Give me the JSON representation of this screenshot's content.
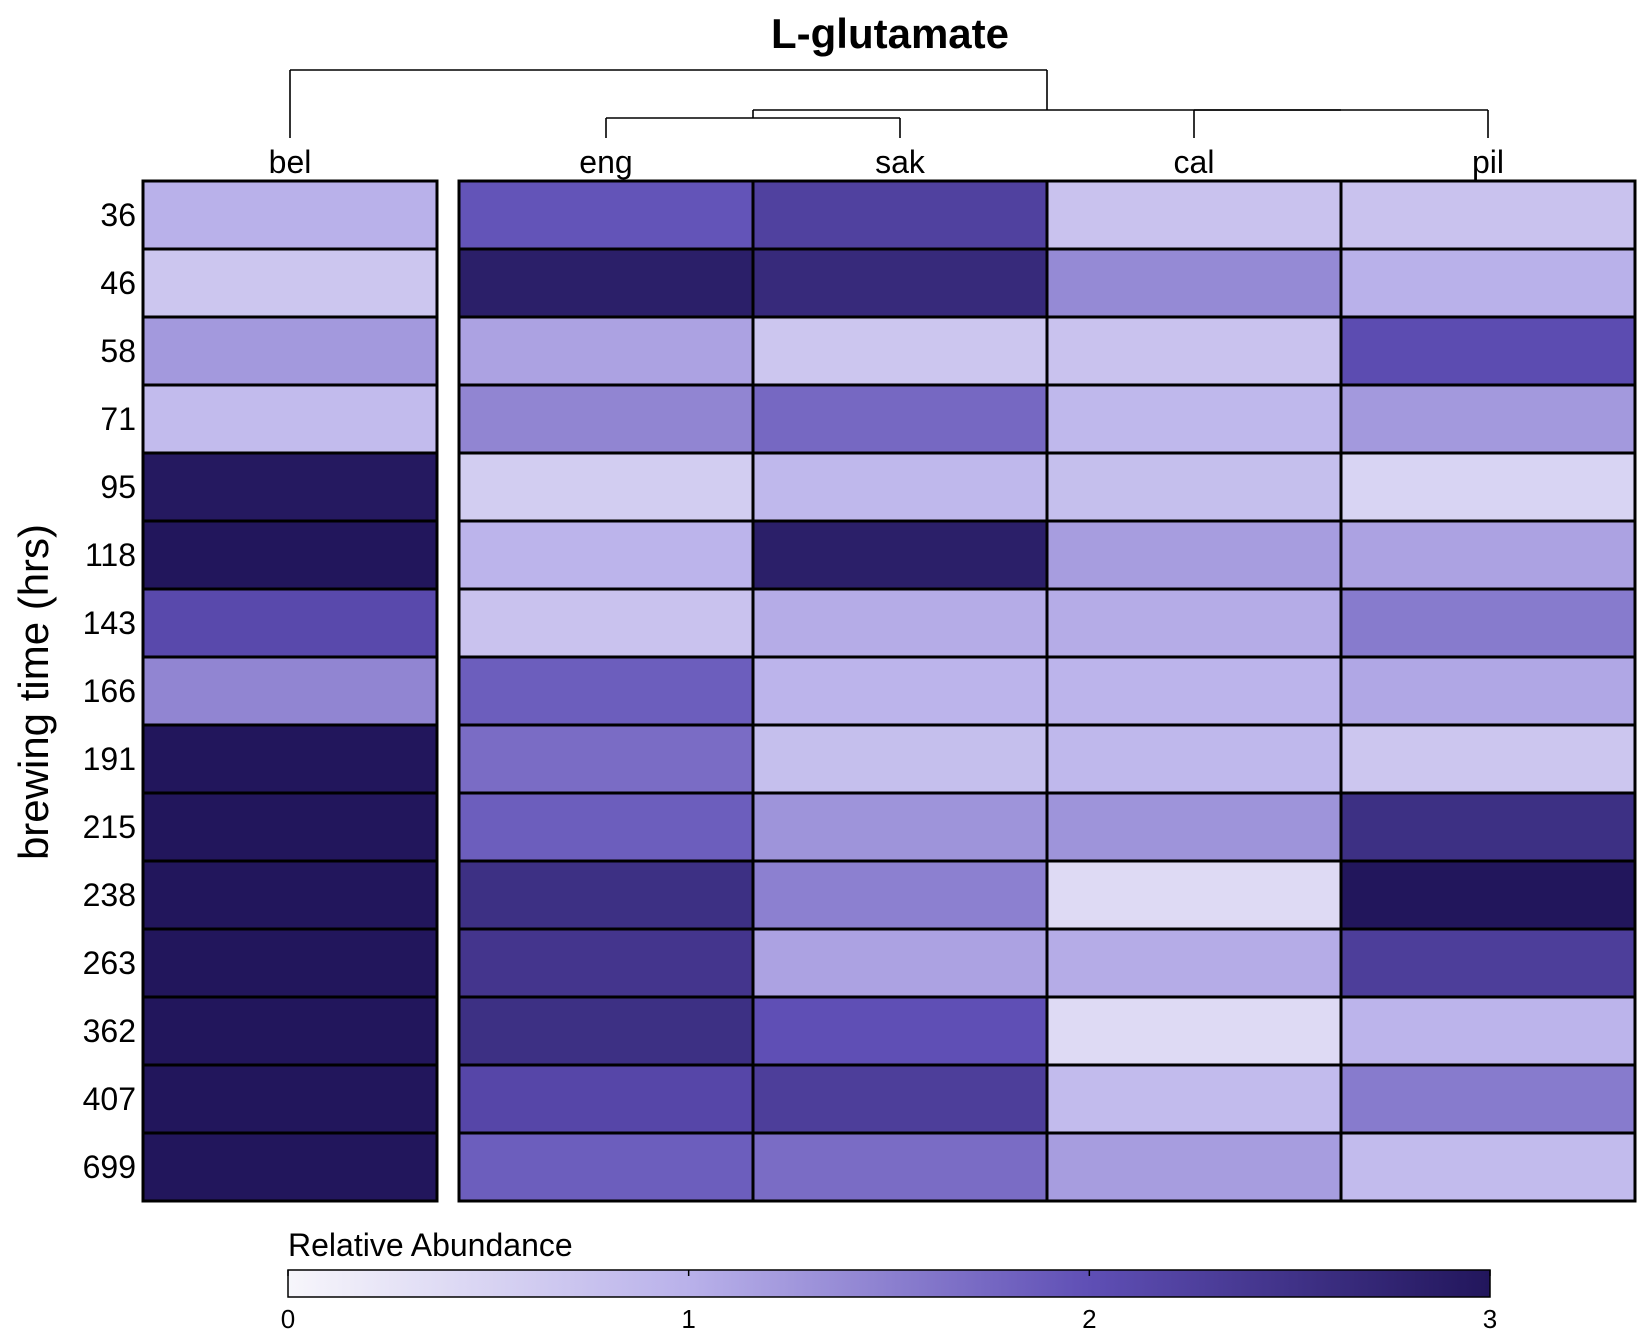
{
  "chart_data": {
    "type": "heatmap",
    "title": "L-glutamate",
    "ylabel": "brewing time (hrs)",
    "columns": [
      "bel",
      "eng",
      "sak",
      "cal",
      "pil"
    ],
    "rows": [
      "36",
      "46",
      "58",
      "71",
      "95",
      "118",
      "143",
      "166",
      "191",
      "215",
      "238",
      "263",
      "362",
      "407",
      "699"
    ],
    "values": [
      [
        1.0,
        1.95,
        2.25,
        0.75,
        0.75
      ],
      [
        0.7,
        2.85,
        2.65,
        1.4,
        1.0
      ],
      [
        1.25,
        1.15,
        0.7,
        0.75,
        2.05
      ],
      [
        0.85,
        1.45,
        1.75,
        0.9,
        1.25
      ],
      [
        2.95,
        0.6,
        0.9,
        0.8,
        0.5
      ],
      [
        3.0,
        0.95,
        2.85,
        1.2,
        1.15
      ],
      [
        2.1,
        0.75,
        1.05,
        1.05,
        1.55
      ],
      [
        1.45,
        1.85,
        0.95,
        0.95,
        1.1
      ],
      [
        3.0,
        1.7,
        0.8,
        0.9,
        0.7
      ],
      [
        3.0,
        1.85,
        1.3,
        1.3,
        2.55
      ],
      [
        3.0,
        2.55,
        1.5,
        0.4,
        3.0
      ],
      [
        3.0,
        2.45,
        1.15,
        1.05,
        2.3
      ],
      [
        3.0,
        2.55,
        2.0,
        0.4,
        0.95
      ],
      [
        3.0,
        2.15,
        2.3,
        0.85,
        1.55
      ],
      [
        3.0,
        1.85,
        1.7,
        1.2,
        0.85
      ]
    ],
    "colorbar": {
      "title": "Relative Abundance",
      "range": [
        0,
        3
      ],
      "ticks": [
        "0",
        "1",
        "2",
        "3"
      ],
      "colors": [
        "#f7f6fb",
        "#b9b1ea",
        "#5f4fb5",
        "#22165c"
      ]
    },
    "dendrogram": "((eng,sak),(cal,pil)) joined with bel at root",
    "grid": false
  }
}
